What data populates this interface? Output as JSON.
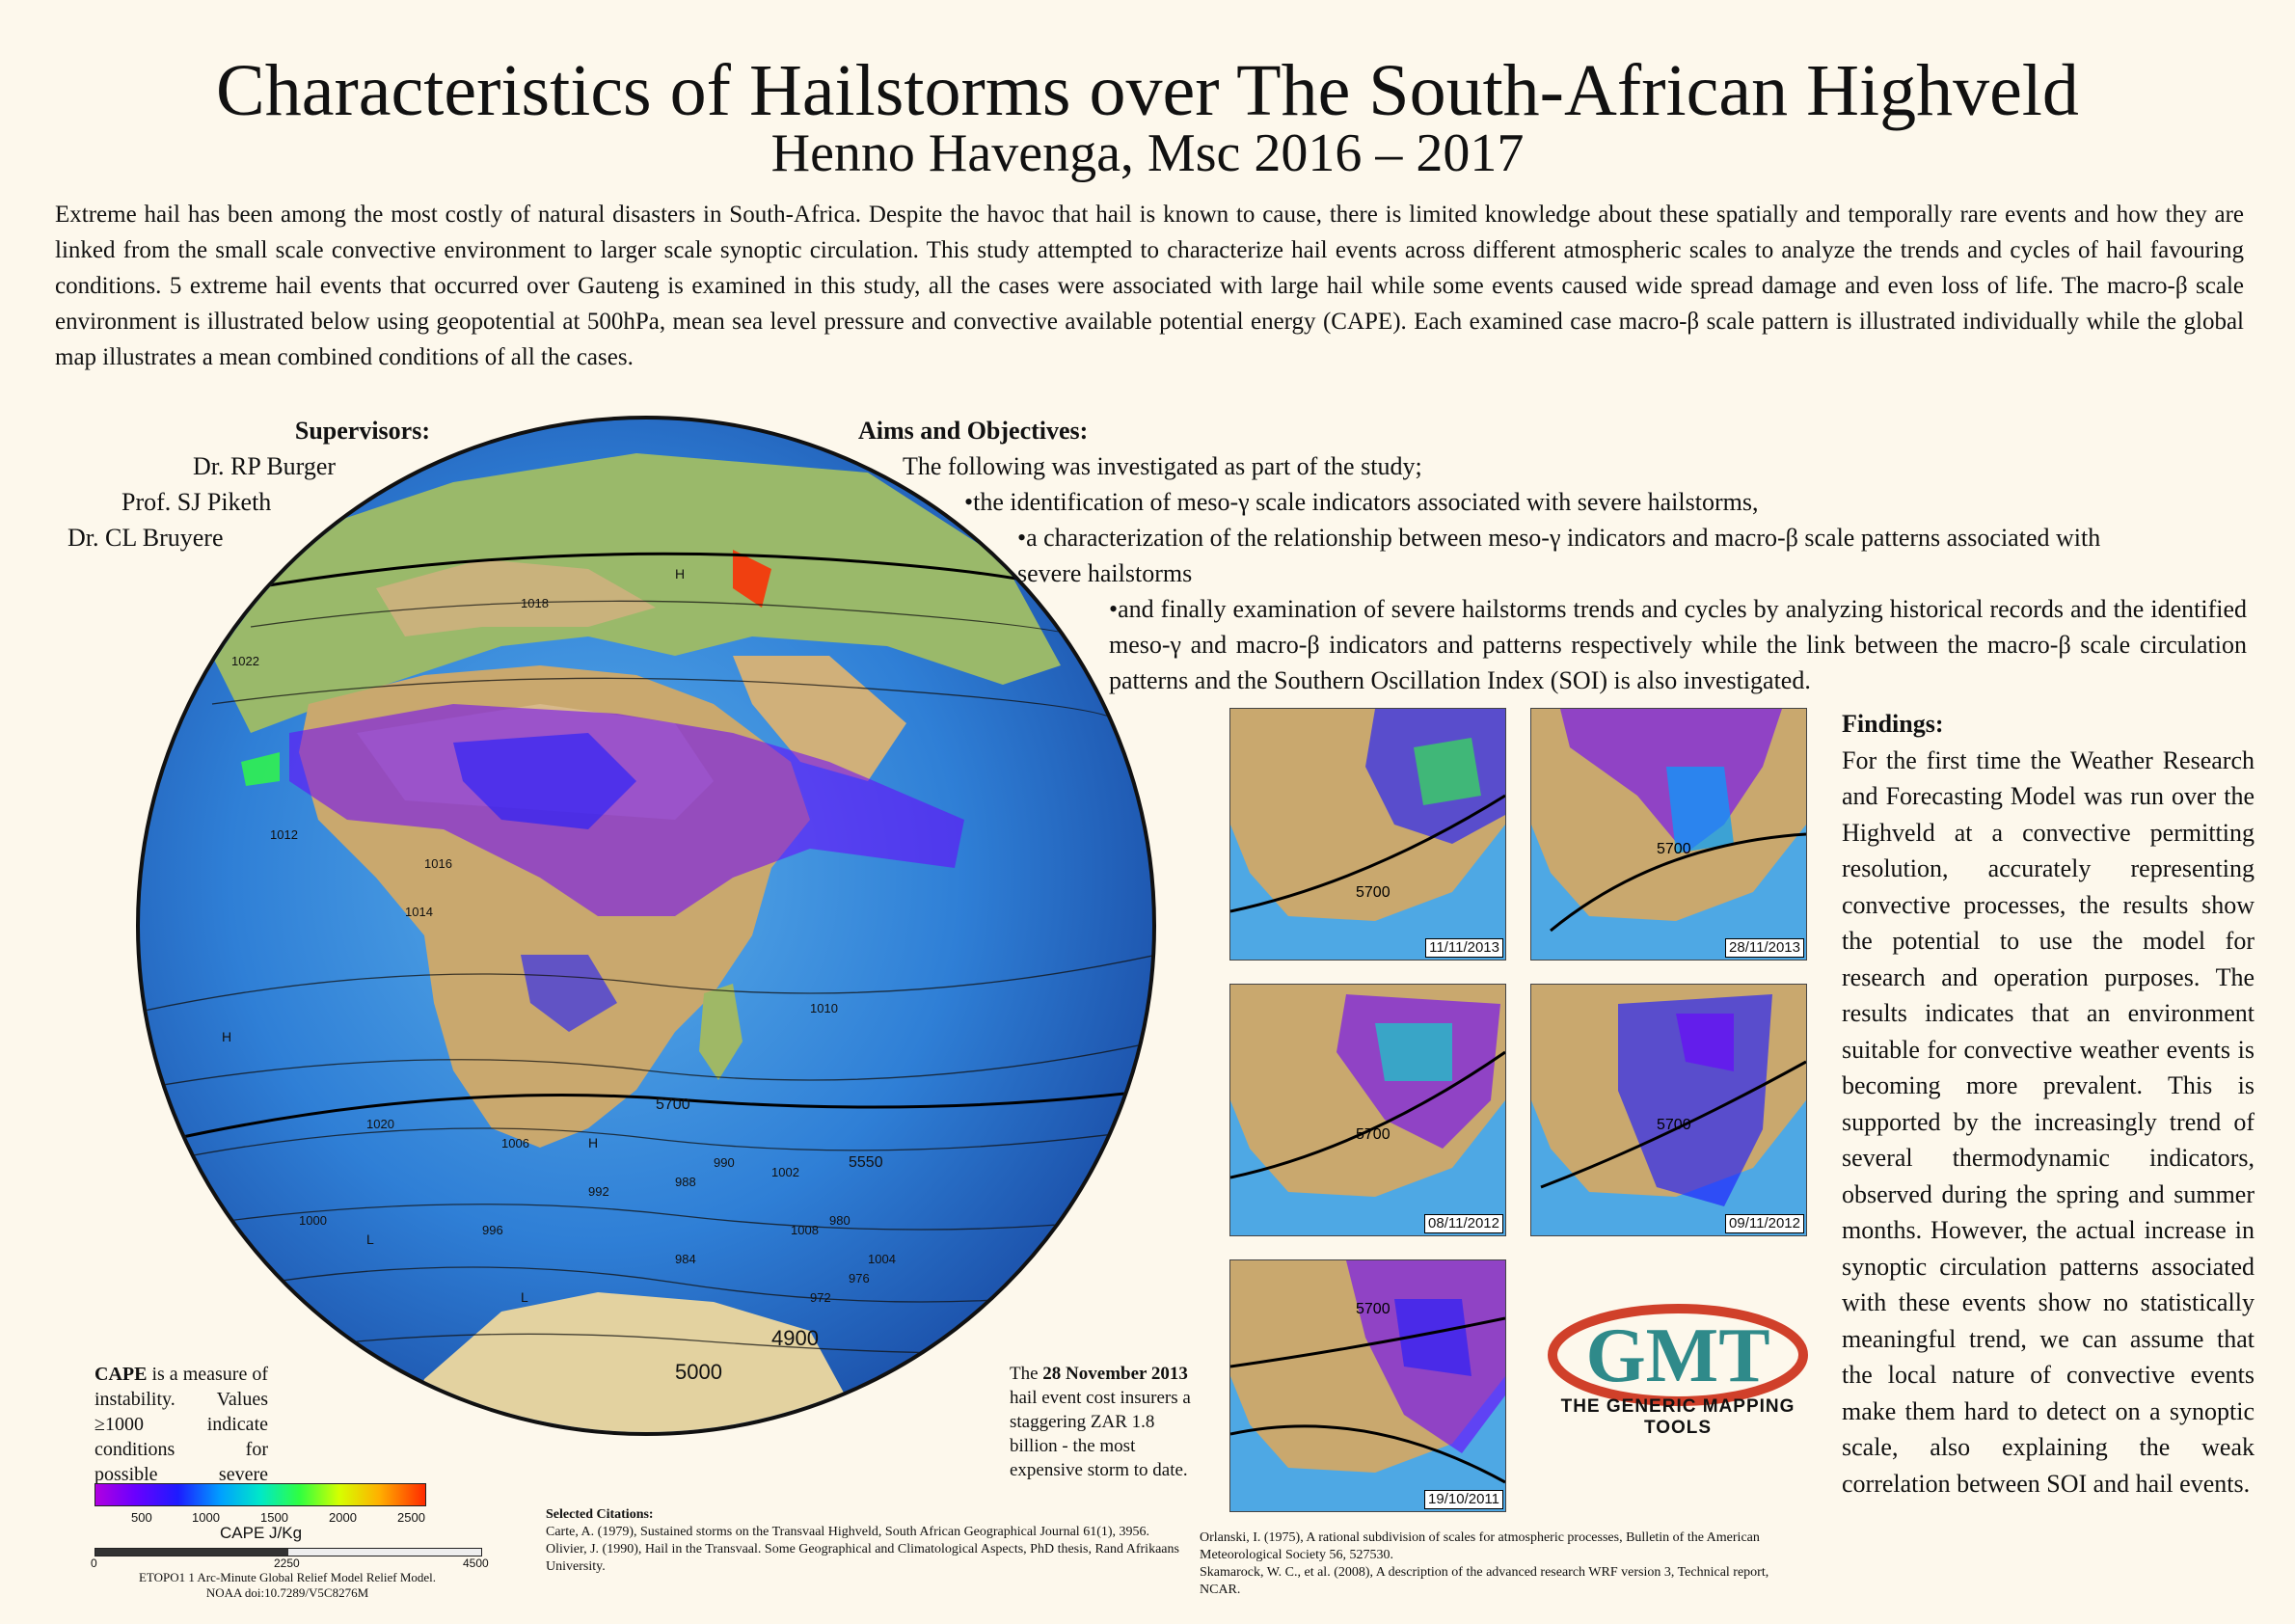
{
  "header": {
    "title": "Characteristics of Hailstorms over The South-African Highveld",
    "subtitle": "Henno Havenga, Msc 2016 – 2017"
  },
  "abstract": "Extreme hail has been among the most costly of natural disasters in South-Africa. Despite the havoc that hail is known to cause, there is limited knowledge about these spatially and temporally rare events and how they are linked from the small scale convective environment to larger scale synoptic circulation. This study attempted to characterize hail events across different atmospheric scales to analyze the trends and cycles of hail favouring conditions. 5 extreme hail events that occurred over Gauteng is examined in this study, all the cases were associated with large hail while some events caused wide spread damage and even loss of life. The macro-β scale environment is illustrated below using geopotential at 500hPa, mean sea level pressure and convective available potential energy (CAPE). Each examined case macro-β scale pattern is illustrated individually while the global map illustrates a mean combined conditions of all the cases.",
  "supervisors": {
    "heading": "Supervisors:",
    "names": [
      "Dr. RP Burger",
      "Prof. SJ Piketh",
      "Dr. CL Bruyere"
    ]
  },
  "aims": {
    "heading": "Aims and Objectives:",
    "intro": "The following was investigated as part of the study;",
    "items": [
      "•the identification of meso-γ scale indicators associated with severe hailstorms,",
      "•a characterization of the relationship between meso-γ indicators and macro-β scale patterns associated with severe hailstorms",
      "•and finally examination of severe hailstorms trends and cycles by analyzing historical records and the identified meso-γ and macro-β indicators and patterns respectively while the link between the macro-β scale circulation patterns and the Southern Oscillation Index (SOI) is also investigated."
    ]
  },
  "findings": {
    "heading": "Findings:",
    "text": "For the first time the Weather Research and Forecasting Model was run over the Highveld at a convective permitting resolution, accurately representing convective processes, the results show the potential to use the model for research and operation purposes. The results indicates that an environment suitable for convective weather events is becoming more prevalent. This is supported by the increasingly trend of several thermodynamic indicators, observed during the spring and summer months. However, the actual increase in synoptic circulation patterns associated with these events show no statistically meaningful trend, we can assume that the local nature of convective events make them hard to detect on a synoptic scale, also explaining the weak correlation between SOI and hail events."
  },
  "case_maps": [
    {
      "date": "11/11/2013",
      "label5700": "5700"
    },
    {
      "date": "28/11/2013",
      "label5700": "5700"
    },
    {
      "date": "08/11/2012",
      "label5700": "5700"
    },
    {
      "date": "09/11/2012",
      "label5700": "5700"
    },
    {
      "date": "19/10/2011",
      "label5700": "5700"
    }
  ],
  "globe_labels": {
    "contours": [
      "1018",
      "1016",
      "1014",
      "1012",
      "1010",
      "1008",
      "1020",
      "1022",
      "1004",
      "1000",
      "996",
      "992",
      "988",
      "984",
      "990",
      "1006",
      "1002",
      "980",
      "976",
      "972",
      "5700",
      "5550",
      "5000",
      "4900"
    ],
    "highs_lows": [
      "H",
      "L"
    ]
  },
  "cape_note": {
    "term": "CAPE",
    "text": " is a measure of instability. Values ≥1000 indicate conditions for possible severe weather."
  },
  "storm_note": {
    "prefix": "The ",
    "date": "28 November 2013",
    "text": " hail event cost insurers a staggering ZAR 1.8 billion - the most expensive storm to date."
  },
  "colorbar": {
    "ticks": [
      "500",
      "1000",
      "1500",
      "2000",
      "2500"
    ],
    "label": "CAPE J/Kg",
    "colors": [
      "#b000e0",
      "#1d1bff",
      "#00e8c8",
      "#30ff40",
      "#ffb000",
      "#ff2a00"
    ]
  },
  "scalebar": {
    "ticks": [
      "0",
      "2250",
      "4500"
    ],
    "source": "ETOPO1 1 Arc-Minute Global Relief Model Relief Model.",
    "doi": "NOAA doi:10.7289/V5C8276M"
  },
  "citations": {
    "heading": "Selected Citations:",
    "left": [
      "Carte, A. (1979), Sustained storms on the Transvaal Highveld, South African Geographical Journal 61(1), 3956.",
      "Olivier, J. (1990), Hail in the Transvaal. Some Geographical and Climatological Aspects, PhD thesis, Rand Afrikaans University."
    ],
    "right": [
      "Orlanski, I. (1975), A rational subdivision of scales for atmospheric processes, Bulletin of the American Meteorological Society 56, 527530.",
      "Skamarock, W. C., et al. (2008), A description of the advanced research WRF version 3, Technical report, NCAR."
    ]
  },
  "logo": {
    "mark": "GMT",
    "text": "THE GENERIC MAPPING TOOLS"
  }
}
